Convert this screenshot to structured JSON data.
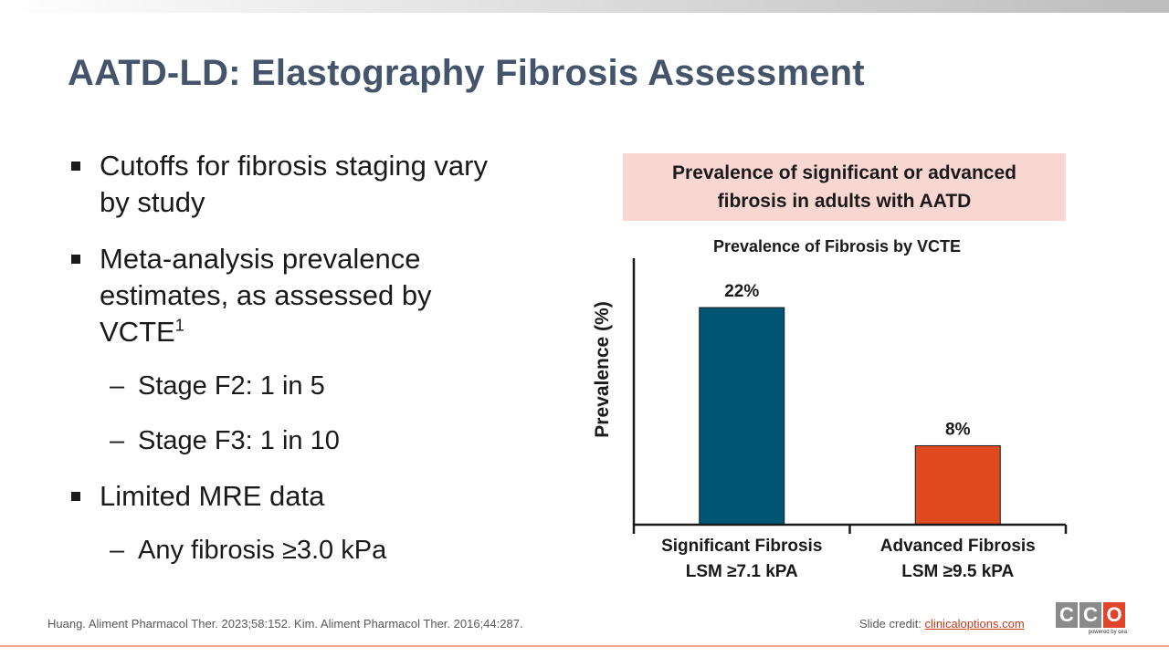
{
  "slide": {
    "title": "AATD-LD: Elastography Fibrosis Assessment",
    "bullets": [
      {
        "text": "Cutoffs for fibrosis staging vary by study",
        "subs": []
      },
      {
        "text": "Meta-analysis prevalence estimates, as assessed by VCTE",
        "sup": "1",
        "subs": [
          "Stage F2: 1 in 5",
          "Stage F3: 1 in 10"
        ]
      },
      {
        "text": "Limited MRE data",
        "subs": [
          "Any fibrosis ≥3.0 kPa"
        ]
      }
    ],
    "sub_dash": "–",
    "chart_header": "Prevalence of significant or advanced fibrosis in adults with AATD",
    "footer_ref": "Huang. Aliment Pharmacol Ther. 2023;58:152. Kim. Aliment Pharmacol Ther. 2016;44:287.",
    "credit_label": "Slide credit: ",
    "credit_link": "clinicaloptions.com",
    "logo": {
      "letters": [
        "C",
        "C",
        "O"
      ],
      "tagline": "powered by cea"
    }
  },
  "chart_data": {
    "type": "bar",
    "title": "Prevalence of Fibrosis by VCTE",
    "ylabel": "Prevalence (%)",
    "xlabel": "",
    "categories": [
      "Significant Fibrosis LSM ≥7.1 kPA",
      "Advanced Fibrosis LSM ≥9.5 kPA"
    ],
    "category_lines": [
      [
        "Significant Fibrosis",
        "LSM ≥7.1 kPA"
      ],
      [
        "Advanced Fibrosis",
        "LSM ≥9.5 kPA"
      ]
    ],
    "values": [
      22,
      8
    ],
    "data_labels": [
      "22%",
      "8%"
    ],
    "colors": [
      "#005572",
      "#e04a1f"
    ],
    "ylim": [
      0,
      27
    ],
    "grid": false,
    "legend": "none"
  }
}
